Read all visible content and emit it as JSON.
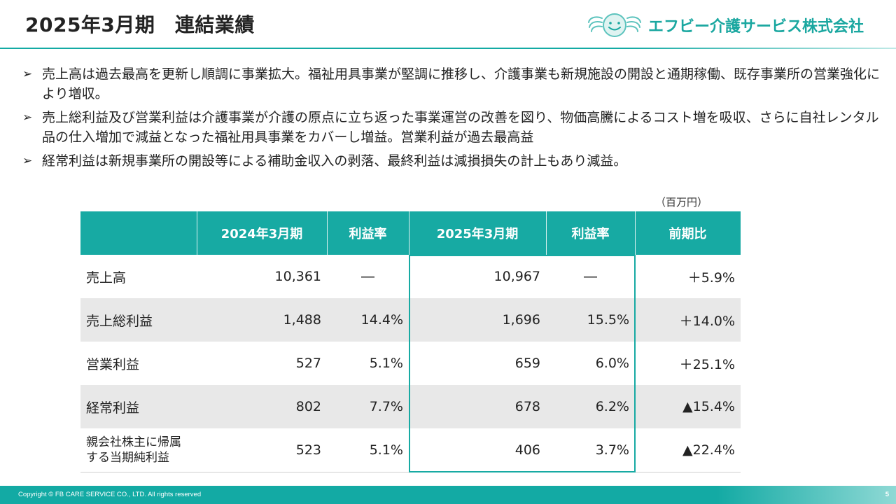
{
  "header": {
    "title": "2025年3月期　連結業績",
    "company": "エフビー介護サービス株式会社"
  },
  "bullets": [
    "売上高は過去最高を更新し順調に事業拡大。福祉用具事業が堅調に推移し、介護事業も新規施設の開設と通期稼働、既存事業所の営業強化により増収。",
    "売上総利益及び営業利益は介護事業が介護の原点に立ち返った事業運営の改善を図り、物価高騰によるコスト増を吸収、さらに自社レンタル品の仕入増加で減益となった福祉用具事業をカバーし増益。営業利益が過去最高益",
    "経常利益は新規事業所の開設等による補助金収入の剥落、最終利益は減損損失の計上もあり減益。"
  ],
  "bullet_mark": "➢",
  "unit": "（百万円）",
  "table": {
    "headers": [
      "",
      "2024年3月期",
      "利益率",
      "2025年3月期",
      "利益率",
      "前期比"
    ],
    "rows": [
      {
        "label": "売上高",
        "v2024": "10,361",
        "m2024": "―",
        "v2025": "10,967",
        "m2025": "―",
        "yoy": "＋5.9%"
      },
      {
        "label": "売上総利益",
        "v2024": "1,488",
        "m2024": "14.4%",
        "v2025": "1,696",
        "m2025": "15.5%",
        "yoy": "＋14.0%"
      },
      {
        "label": "営業利益",
        "v2024": "527",
        "m2024": "5.1%",
        "v2025": "659",
        "m2025": "6.0%",
        "yoy": "＋25.1%"
      },
      {
        "label": "経常利益",
        "v2024": "802",
        "m2024": "7.7%",
        "v2025": "678",
        "m2025": "6.2%",
        "yoy": "▲15.4%"
      },
      {
        "label_line1": "親会社株主に帰属",
        "label_line2": "する当期純利益",
        "v2024": "523",
        "m2024": "5.1%",
        "v2025": "406",
        "m2025": "3.7%",
        "yoy": "▲22.4%"
      }
    ]
  },
  "footer": {
    "copyright": "Copyright © FB CARE SERVICE CO., LTD. All rights reserved",
    "page": "5"
  },
  "colors": {
    "accent": "#17aaa3",
    "row_shade": "#e8e8e8"
  },
  "icons": {
    "logo": "smiling-face-with-wings-icon"
  }
}
